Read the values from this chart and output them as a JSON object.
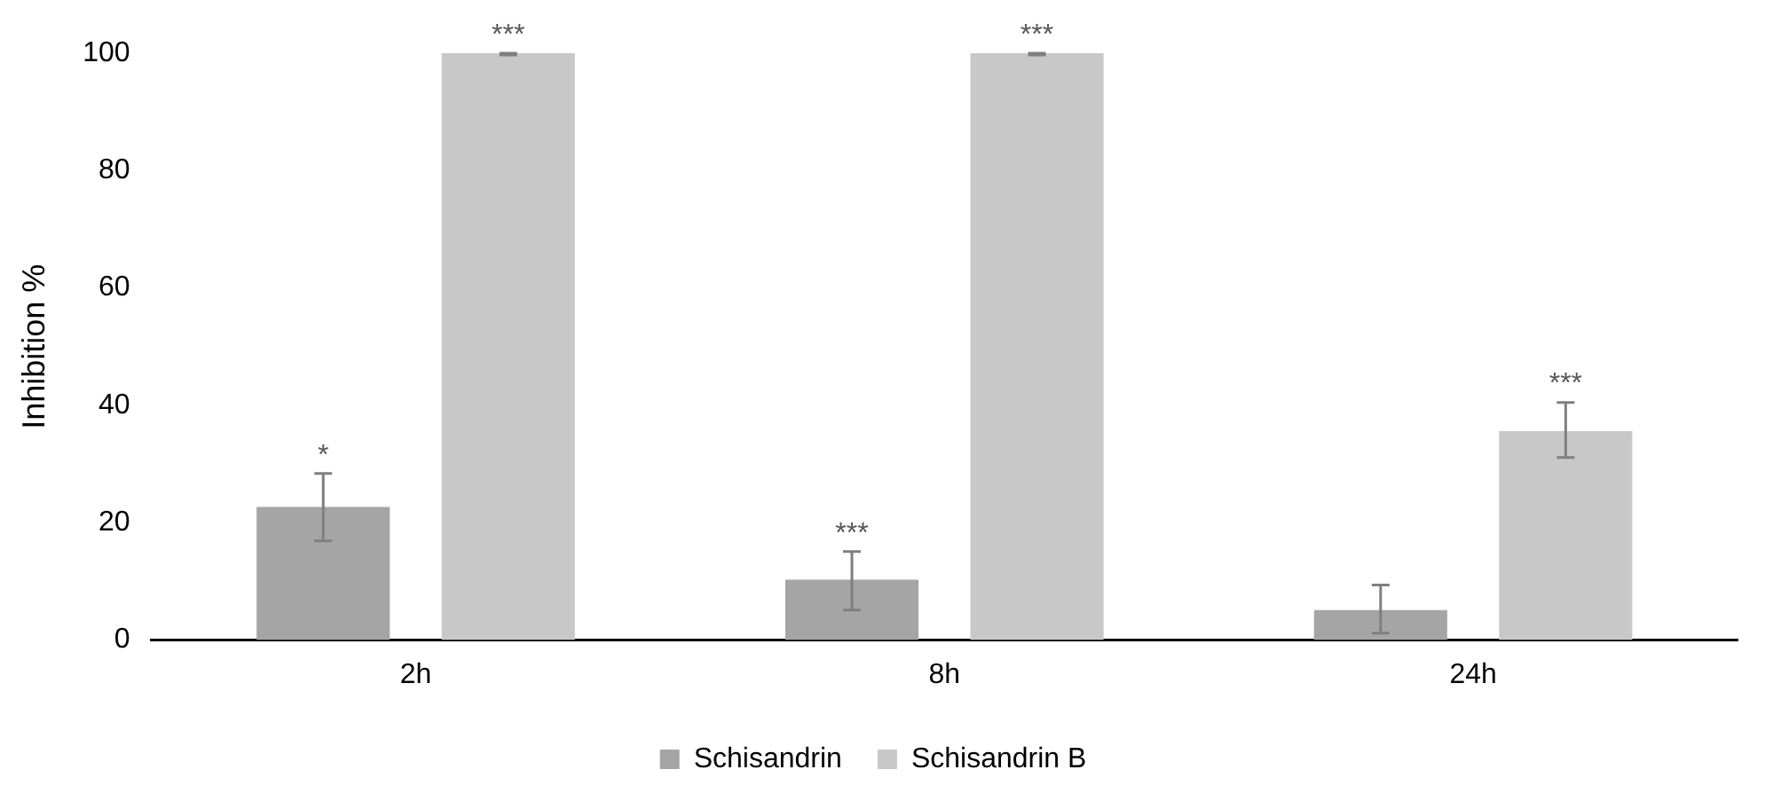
{
  "chart_data": {
    "type": "bar",
    "ylabel": "Inhibition %",
    "categories": [
      "2h",
      "8h",
      "24h"
    ],
    "series": [
      {
        "name": "Schisandrin",
        "color": "#a5a5a5",
        "values": [
          22.7,
          10.3,
          5.1
        ],
        "errors": [
          [
            16.9,
            28.4
          ],
          [
            5.1,
            15.1
          ],
          [
            1.2,
            9.4
          ]
        ],
        "value_labels": [
          "*",
          "***",
          null
        ]
      },
      {
        "name": "Schisandrin B",
        "color": "#c8c8c8",
        "values": [
          100,
          100,
          35.6
        ],
        "errors": [
          [
            99.7,
            100
          ],
          [
            99.7,
            100
          ],
          [
            31.1,
            40.5
          ]
        ],
        "value_labels": [
          "***",
          "***",
          "***"
        ]
      }
    ],
    "ylim": [
      0,
      100
    ],
    "yticks": [
      0,
      20,
      40,
      60,
      80,
      100
    ],
    "grid": false,
    "legend": "bottom"
  }
}
